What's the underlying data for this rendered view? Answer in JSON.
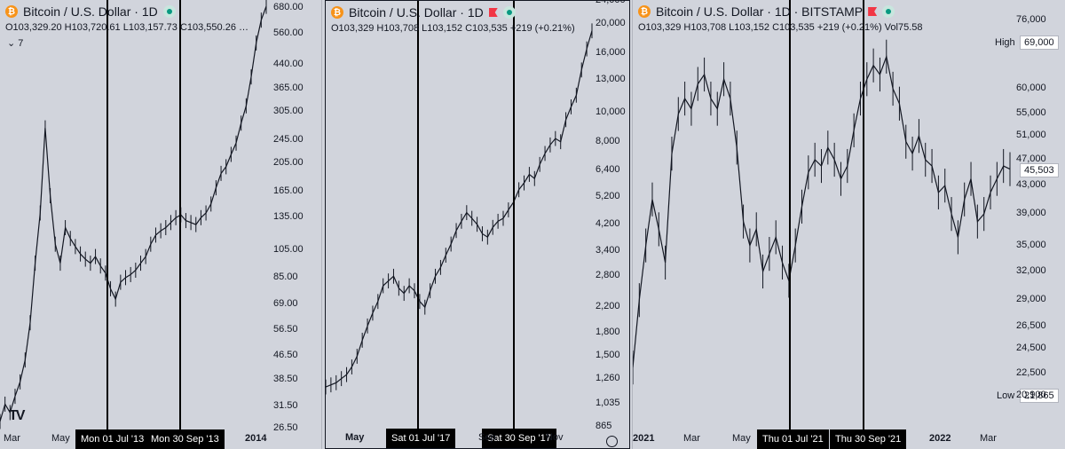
{
  "panels": [
    {
      "id": "p1",
      "header": {
        "title": "Bitcoin / U.S. Dollar · 1D",
        "exchange": "",
        "flag": false,
        "ohlc": "O103,329.20 H103,720.61 L103,157.73 C103,550.26 …",
        "extra": ""
      },
      "collapse_label": "⌄ 7",
      "logo": "TV",
      "chart_data": {
        "type": "line",
        "title": "Bitcoin / U.S. Dollar · 1D",
        "scale": "log",
        "ylim": [
          26.5,
          700
        ],
        "ytick_labels": [
          "680.00",
          "560.00",
          "440.00",
          "365.00",
          "305.00",
          "245.00",
          "205.00",
          "165.00",
          "135.00",
          "105.00",
          "85.00",
          "69.00",
          "56.50",
          "46.50",
          "38.50",
          "31.50",
          "26.50"
        ],
        "ytick_values": [
          680,
          560,
          440,
          365,
          305,
          245,
          205,
          165,
          135,
          105,
          85,
          69,
          56.5,
          46.5,
          38.5,
          31.5,
          26.5
        ],
        "xtick_labels": [
          "Mar",
          "May",
          "Jul",
          "2014"
        ],
        "vlines": [
          "Mon 01 Jul '13",
          "Mon 30 Sep '13"
        ],
        "series": [
          {
            "values": [
              28,
              32,
              30,
              34,
              38,
              45,
              60,
              95,
              140,
              270,
              160,
              110,
              95,
              125,
              115,
              108,
              102,
              98,
              95,
              100,
              93,
              88,
              78,
              72,
              82,
              85,
              87,
              90,
              95,
              100,
              110,
              118,
              122,
              125,
              130,
              135,
              138,
              132,
              130,
              128,
              135,
              140,
              150,
              170,
              190,
              200,
              220,
              240,
              280,
              320,
              400,
              520,
              620,
              690
            ]
          }
        ],
        "grid": false
      }
    },
    {
      "id": "p2",
      "header": {
        "title": "Bitcoin / U.S. Dollar · 1D",
        "exchange": "",
        "flag": true,
        "ohlc": "O103,329 H103,708 L103,152 C103,535 +219 (+0.21%)",
        "extra": ""
      },
      "chart_data": {
        "type": "line",
        "title": "Bitcoin / U.S. Dollar · 1D",
        "scale": "log",
        "ylim": [
          865,
          24000
        ],
        "ytick_labels": [
          "24,000",
          "20,000",
          "16,000",
          "13,000",
          "10,000",
          "8,000",
          "6,400",
          "5,200",
          "4,200",
          "3,400",
          "2,800",
          "2,200",
          "1,800",
          "1,500",
          "1,260",
          "1,035",
          "865"
        ],
        "ytick_values": [
          24000,
          20000,
          16000,
          13000,
          10000,
          8000,
          6400,
          5200,
          4200,
          3400,
          2800,
          2200,
          1800,
          1500,
          1260,
          1035,
          865
        ],
        "xtick_labels": [
          "May",
          "Jul",
          "Sep",
          "Nov"
        ],
        "vlines": [
          "Sat 01 Jul '17",
          "Sat 30 Sep '17"
        ],
        "series": [
          {
            "values": [
              1180,
              1200,
              1220,
              1260,
              1300,
              1380,
              1500,
              1700,
              1900,
              2100,
              2300,
              2600,
              2700,
              2800,
              2550,
              2450,
              2600,
              2500,
              2300,
              2200,
              2500,
              2800,
              3000,
              3300,
              3600,
              4000,
              4300,
              4600,
              4400,
              4200,
              3900,
              3800,
              4100,
              4300,
              4400,
              4700,
              5000,
              5500,
              5800,
              6200,
              6000,
              6700,
              7300,
              7800,
              8200,
              8000,
              9500,
              10500,
              11500,
              14000,
              16500,
              19000
            ]
          }
        ],
        "grid": false
      }
    },
    {
      "id": "p3",
      "header": {
        "title": "Bitcoin / U.S. Dollar · 1D · BITSTAMP",
        "exchange": "",
        "flag": true,
        "ohlc": "O103,329 H103,708 L103,152 C103,535 +219 (+0.21%)",
        "extra": "Vol75.58"
      },
      "high_label": "High",
      "high_value": "69,000",
      "low_label": "Low",
      "low_value": "21,865",
      "last_value": "45,503",
      "chart_data": {
        "type": "line",
        "title": "Bitcoin / U.S. Dollar · 1D · BITSTAMP",
        "scale": "log",
        "ylim": [
          20000,
          78000
        ],
        "ytick_labels": [
          "76,000",
          "60,000",
          "55,000",
          "51,000",
          "47,000",
          "43,000",
          "39,000",
          "35,000",
          "32,000",
          "29,000",
          "26,500",
          "24,500",
          "22,500",
          "20,900"
        ],
        "ytick_values": [
          76000,
          60000,
          55000,
          51000,
          47000,
          43000,
          39000,
          35000,
          32000,
          29000,
          26500,
          24500,
          22500,
          20900
        ],
        "xtick_labels": [
          "2021",
          "Mar",
          "May",
          "Jul",
          "Sep",
          "2022",
          "Mar"
        ],
        "vlines": [
          "Thu 01 Jul '21",
          "Thu 30 Sep '21"
        ],
        "series": [
          {
            "values": [
              23000,
              29000,
              35000,
              41000,
              37000,
              33000,
              48000,
              55000,
              58000,
              56000,
              61000,
              63000,
              58000,
              56000,
              62000,
              58000,
              49000,
              38000,
              35000,
              37000,
              32000,
              34000,
              36000,
              33000,
              31000,
              35000,
              40000,
              45000,
              47000,
              46000,
              49000,
              47000,
              44000,
              46000,
              52000,
              58000,
              62000,
              65000,
              63000,
              67000,
              60000,
              57000,
              50000,
              48000,
              51000,
              47000,
              46000,
              42000,
              43000,
              39000,
              36000,
              41000,
              44000,
              38000,
              39000,
              42000,
              44000,
              46000,
              45503
            ]
          }
        ],
        "grid": false
      }
    }
  ]
}
